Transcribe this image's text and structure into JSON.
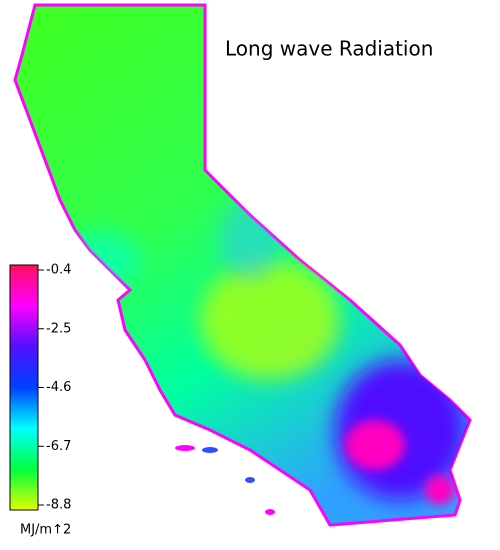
{
  "title": "Long wave Radiation",
  "colorbar": {
    "range": [
      -8.8,
      -0.4
    ],
    "ticks": [
      -0.4,
      -2.5,
      -4.6,
      -6.7,
      -8.8
    ],
    "colors": [
      "#ff1060",
      "#ff00ff",
      "#5010ff",
      "#0040ff",
      "#00ffff",
      "#00ff40",
      "#e0ff00"
    ],
    "unit": "MJ/m↑2"
  }
}
